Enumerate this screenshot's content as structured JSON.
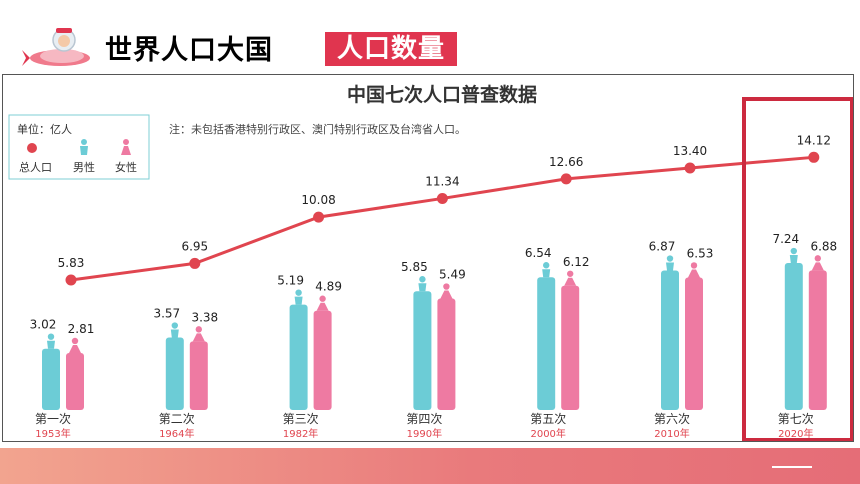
{
  "header": {
    "title": "世界人口大国",
    "tag": "人口数量",
    "logo_icon": "rocket-astronaut-icon"
  },
  "colors": {
    "total": "#e0454f",
    "male": "#6cccd6",
    "female": "#ee7aa2",
    "highlight": "#cc2a3f",
    "tag_bg": "#e0354f"
  },
  "chart_data": {
    "type": "bar",
    "title": "中国七次人口普查数据",
    "unit_label": "单位：亿人",
    "note": "注：未包括香港特别行政区、澳门特别行政区及台湾省人口。",
    "legend": [
      "总人口",
      "男性",
      "女性"
    ],
    "categories": [
      "第一次",
      "第二次",
      "第三次",
      "第四次",
      "第五次",
      "第六次",
      "第七次"
    ],
    "years": [
      "1953年",
      "1964年",
      "1982年",
      "1990年",
      "2000年",
      "2010年",
      "2020年"
    ],
    "series": [
      {
        "name": "总人口",
        "type": "line",
        "values": [
          5.83,
          6.95,
          10.08,
          11.34,
          12.66,
          13.4,
          14.12
        ]
      },
      {
        "name": "男性",
        "type": "bar",
        "values": [
          3.02,
          3.57,
          5.19,
          5.85,
          6.54,
          6.87,
          7.24
        ]
      },
      {
        "name": "女性",
        "type": "bar",
        "values": [
          2.81,
          3.38,
          4.89,
          5.49,
          6.12,
          6.53,
          6.88
        ]
      }
    ],
    "highlight_category": "第七次"
  }
}
